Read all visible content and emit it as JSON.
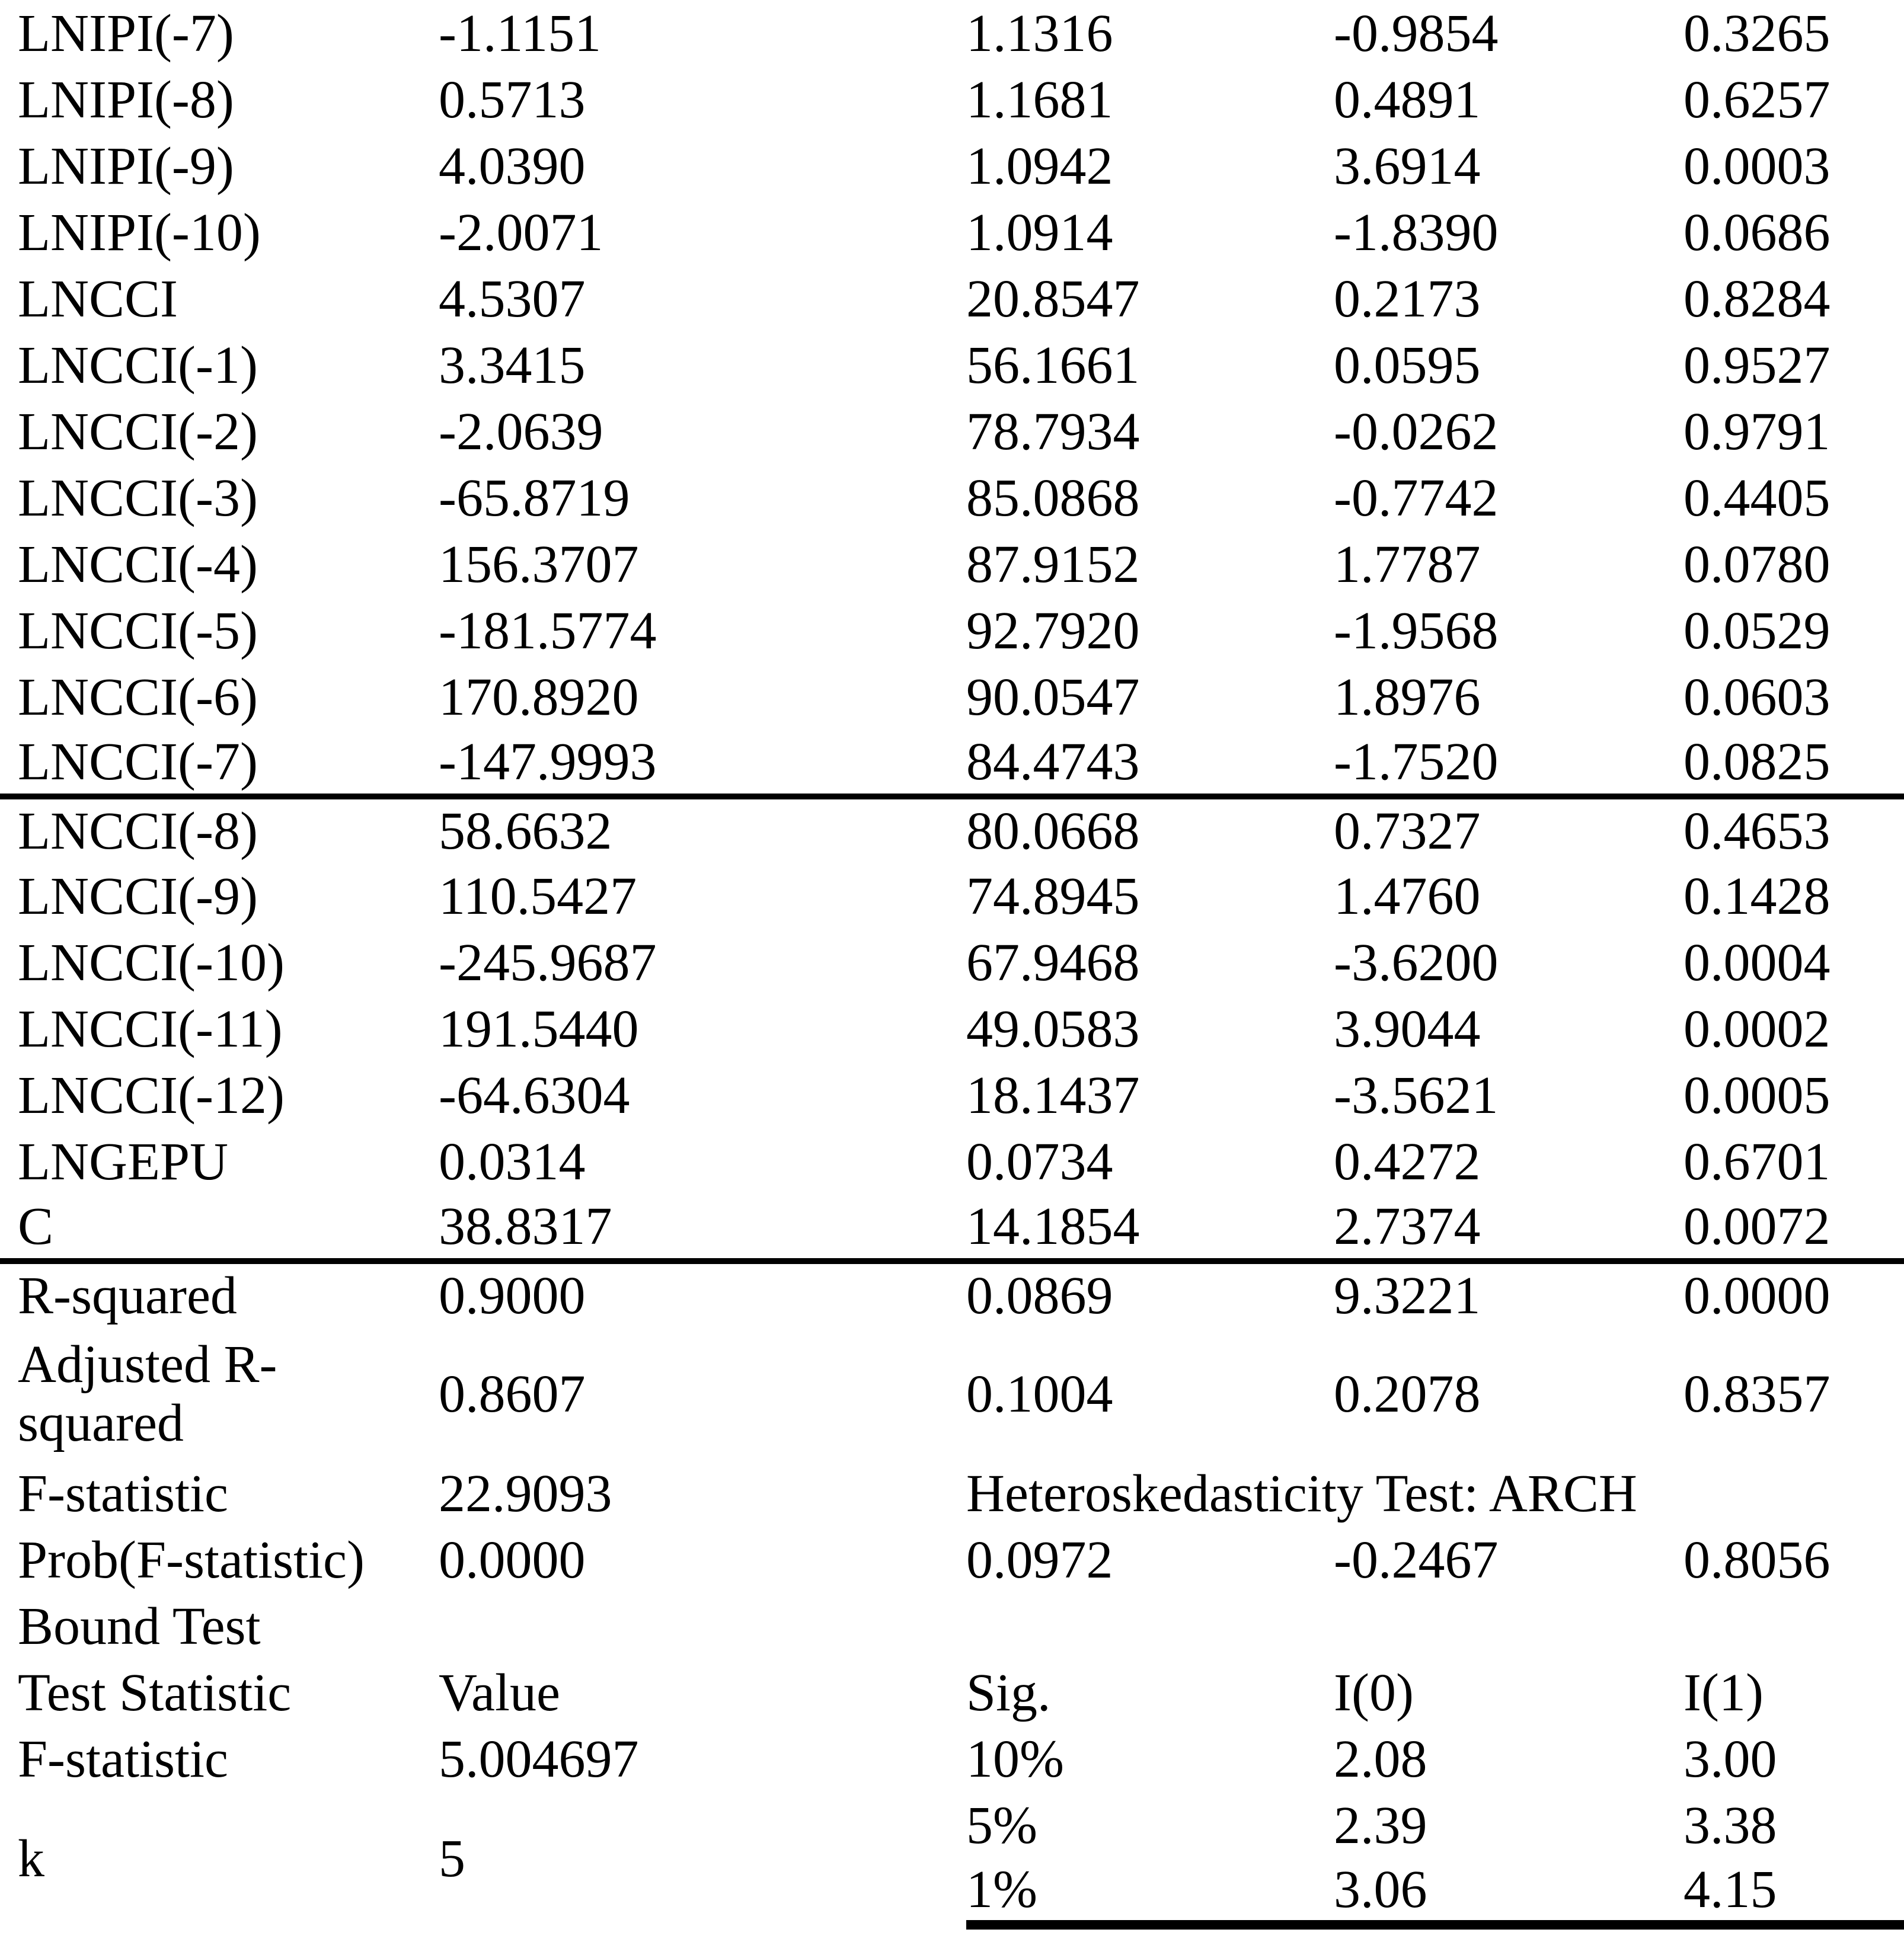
{
  "table": {
    "coef_rows_a": [
      [
        "LNIPI(-7)",
        "-1.1151",
        "1.1316",
        "-0.9854",
        "0.3265"
      ],
      [
        "LNIPI(-8)",
        "0.5713",
        "1.1681",
        "0.4891",
        "0.6257"
      ],
      [
        "LNIPI(-9)",
        "4.0390",
        "1.0942",
        "3.6914",
        "0.0003"
      ],
      [
        "LNIPI(-10)",
        "-2.0071",
        "1.0914",
        "-1.8390",
        "0.0686"
      ],
      [
        "LNCCI",
        "4.5307",
        "20.8547",
        "0.2173",
        "0.8284"
      ],
      [
        "LNCCI(-1)",
        "3.3415",
        "56.1661",
        "0.0595",
        "0.9527"
      ],
      [
        "LNCCI(-2)",
        "-2.0639",
        "78.7934",
        "-0.0262",
        "0.9791"
      ],
      [
        "LNCCI(-3)",
        "-65.8719",
        "85.0868",
        "-0.7742",
        "0.4405"
      ],
      [
        "LNCCI(-4)",
        "156.3707",
        "87.9152",
        "1.7787",
        "0.0780"
      ],
      [
        "LNCCI(-5)",
        "-181.5774",
        "92.7920",
        "-1.9568",
        "0.0529"
      ],
      [
        "LNCCI(-6)",
        "170.8920",
        "90.0547",
        "1.8976",
        "0.0603"
      ],
      [
        "LNCCI(-7)",
        "-147.9993",
        "84.4743",
        "-1.7520",
        "0.0825"
      ]
    ],
    "coef_rows_b": [
      [
        "LNCCI(-8)",
        "58.6632",
        "80.0668",
        "0.7327",
        "0.4653"
      ],
      [
        "LNCCI(-9)",
        "110.5427",
        "74.8945",
        "1.4760",
        "0.1428"
      ],
      [
        "LNCCI(-10)",
        "-245.9687",
        "67.9468",
        "-3.6200",
        "0.0004"
      ],
      [
        "LNCCI(-11)",
        "191.5440",
        "49.0583",
        "3.9044",
        "0.0002"
      ],
      [
        "LNCCI(-12)",
        "-64.6304",
        "18.1437",
        "-3.5621",
        "0.0005"
      ],
      [
        "LNGEPU",
        "0.0314",
        "0.0734",
        "0.4272",
        "0.6701"
      ],
      [
        "C",
        "38.8317",
        "14.1854",
        "2.7374",
        "0.0072"
      ]
    ],
    "stats_rows": [
      [
        "R-squared",
        "0.9000",
        "0.0869",
        "9.3221",
        "0.0000"
      ],
      [
        "Adjusted R-squared",
        "0.8607",
        "0.1004",
        "0.2078",
        "0.8357"
      ]
    ],
    "f_stat_row": [
      "F-statistic",
      "22.9093",
      "Heteroskedasticity Test: ARCH"
    ],
    "prob_row": [
      "Prob(F-statistic)",
      "0.0000",
      "0.0972",
      "-0.2467",
      "0.8056"
    ],
    "bound_test_title": "Bound Test",
    "bound_header": [
      "Test Statistic",
      "Value",
      "Sig.",
      "I(0)",
      "I(1)"
    ],
    "bound_row_f": [
      "F-statistic",
      "5.004697",
      "10%",
      "2.08",
      "3.00"
    ],
    "bound_row_k": [
      "k",
      "5"
    ],
    "bound_sig_rows": [
      [
        "5%",
        "2.39",
        "3.38"
      ],
      [
        "1%",
        "3.06",
        "4.15"
      ]
    ]
  }
}
